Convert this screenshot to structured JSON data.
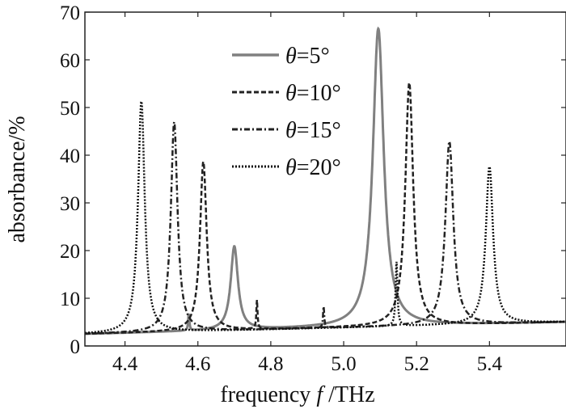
{
  "chart_data": {
    "type": "line",
    "title": "",
    "xlabel_prefix": "frequency ",
    "xlabel_var": "f",
    "xlabel_suffix": " /THz",
    "ylabel": "absorbance/%",
    "xlim": [
      4.29,
      5.61
    ],
    "ylim": [
      0,
      70
    ],
    "xticks": [
      4.4,
      4.6,
      4.8,
      5.0,
      5.2,
      5.4
    ],
    "xtick_labels": [
      "4.4",
      "4.6",
      "4.8",
      "5.0",
      "5.2",
      "5.4"
    ],
    "yticks": [
      0,
      10,
      20,
      30,
      40,
      50,
      60,
      70
    ],
    "ytick_labels": [
      "0",
      "10",
      "20",
      "30",
      "40",
      "50",
      "60",
      "70"
    ],
    "grid": false,
    "legend_position": "top-center",
    "series": [
      {
        "name": "θ=5°",
        "label_var": "θ",
        "label_rest": "=5°",
        "style": "solid",
        "color": "#808080",
        "baseline": [
          2.5,
          5.0
        ],
        "peaks": [
          {
            "center": 4.575,
            "height": 3.5,
            "width": 0.002
          },
          {
            "center": 4.7,
            "height": 17.5,
            "width": 0.012
          },
          {
            "center": 5.095,
            "height": 62.5,
            "width": 0.018
          }
        ]
      },
      {
        "name": "θ=10°",
        "label_var": "θ",
        "label_rest": "=10°",
        "style": "dashed",
        "color": "#222222",
        "baseline": [
          2.5,
          5.0
        ],
        "peaks": [
          {
            "center": 4.615,
            "height": 35.5,
            "width": 0.011
          },
          {
            "center": 4.762,
            "height": 6.0,
            "width": 0.002
          },
          {
            "center": 5.18,
            "height": 51.0,
            "width": 0.013
          }
        ]
      },
      {
        "name": "θ=15°",
        "label_var": "θ",
        "label_rest": "=15°",
        "style": "dashdot",
        "color": "#222222",
        "baseline": [
          2.5,
          5.0
        ],
        "peaks": [
          {
            "center": 4.535,
            "height": 44.0,
            "width": 0.011
          },
          {
            "center": 4.945,
            "height": 4.5,
            "width": 0.002
          },
          {
            "center": 5.29,
            "height": 38.5,
            "width": 0.013
          }
        ]
      },
      {
        "name": "θ=20°",
        "label_var": "θ",
        "label_rest": "=20°",
        "style": "dotted",
        "color": "#111111",
        "baseline": [
          2.5,
          5.0
        ],
        "peaks": [
          {
            "center": 4.445,
            "height": 48.5,
            "width": 0.011
          },
          {
            "center": 5.145,
            "height": 13.5,
            "width": 0.003
          },
          {
            "center": 5.4,
            "height": 33.0,
            "width": 0.012
          }
        ]
      }
    ]
  }
}
